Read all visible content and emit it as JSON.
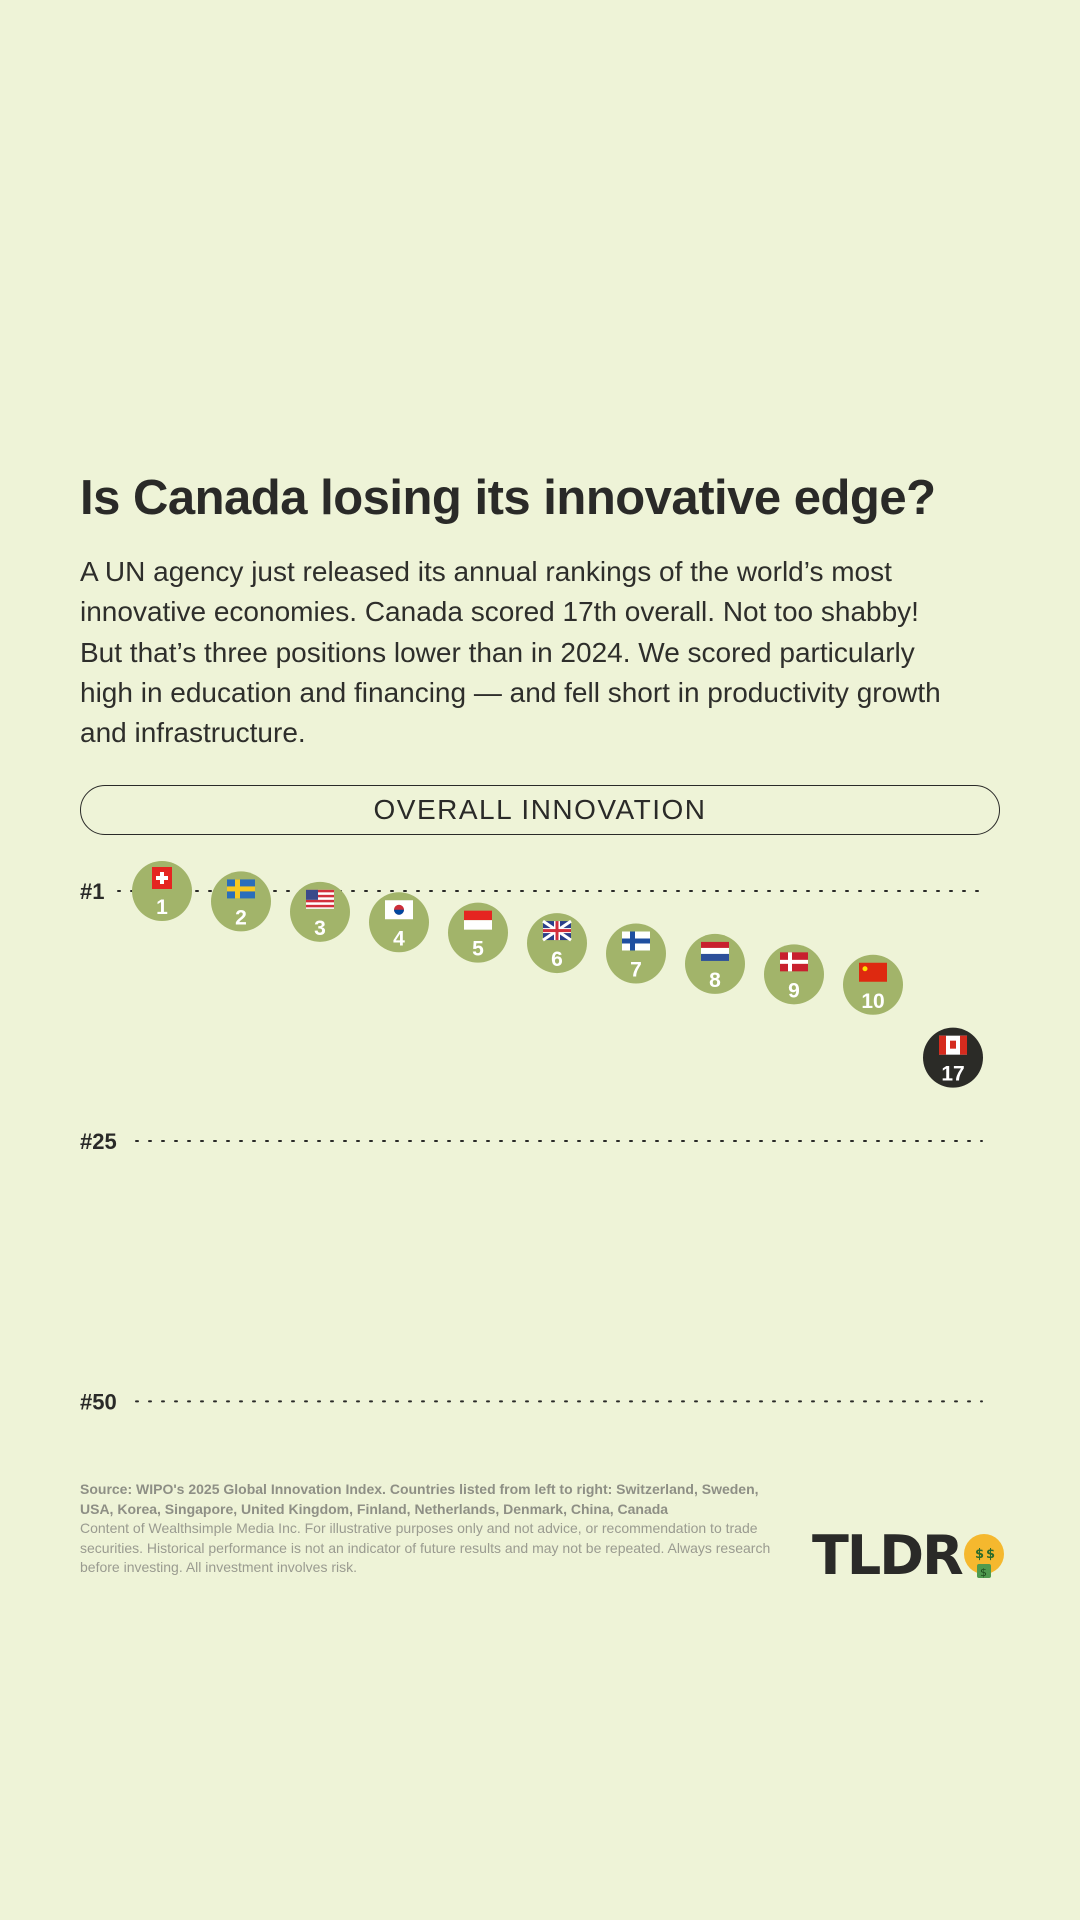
{
  "header": {
    "title": "Is Canada losing its innovative edge?",
    "intro": "A UN agency just released its annual rankings of the world’s most innovative economies. Canada scored 17th overall. Not too shabby! But that’s three positions lower than in 2024. We scored particularly high in education and financing — and fell short in productivity growth and infrastructure."
  },
  "chart_data": {
    "type": "scatter",
    "title": "OVERALL INNOVATION",
    "y_axis": {
      "ticks": [
        1,
        25,
        50
      ],
      "tick_labels": [
        "#1",
        "#25",
        "#50"
      ],
      "reversed": true,
      "range": [
        1,
        50
      ]
    },
    "grid": "dotted horizontal lines at ticks",
    "points": [
      {
        "country": "Switzerland",
        "flag": "flag-ch",
        "rank": 1,
        "label": "1",
        "highlight": false
      },
      {
        "country": "Sweden",
        "flag": "flag-se",
        "rank": 2,
        "label": "2",
        "highlight": false
      },
      {
        "country": "USA",
        "flag": "flag-us",
        "rank": 3,
        "label": "3",
        "highlight": false
      },
      {
        "country": "Korea",
        "flag": "flag-kr",
        "rank": 4,
        "label": "4",
        "highlight": false
      },
      {
        "country": "Singapore",
        "flag": "flag-sg",
        "rank": 5,
        "label": "5",
        "highlight": false
      },
      {
        "country": "United Kingdom",
        "flag": "flag-gb",
        "rank": 6,
        "label": "6",
        "highlight": false
      },
      {
        "country": "Finland",
        "flag": "flag-fi",
        "rank": 7,
        "label": "7",
        "highlight": false
      },
      {
        "country": "Netherlands",
        "flag": "flag-nl",
        "rank": 8,
        "label": "8",
        "highlight": false
      },
      {
        "country": "Denmark",
        "flag": "flag-dk",
        "rank": 9,
        "label": "9",
        "highlight": false
      },
      {
        "country": "China",
        "flag": "flag-cn",
        "rank": 10,
        "label": "10",
        "highlight": false
      },
      {
        "country": "Canada",
        "flag": "flag-ca",
        "rank": 17,
        "label": "17",
        "highlight": true
      }
    ],
    "colors": {
      "point": "#a2b46a",
      "highlight": "#2b2b27",
      "label": "#ffffff",
      "background": "#eef3d7"
    }
  },
  "footer": {
    "source": "Source: WIPO's 2025 Global Innovation Index. Countries listed from left to right: Switzerland, Sweden, USA, Korea, Singapore, United Kingdom, Finland, Netherlands, Denmark, China, Canada",
    "disclaimer": "Content of Wealthsimple Media Inc. For illustrative purposes only and not advice, or recommendation to trade securities. Historical performance is not an indicator of future results and may not be repeated. Always research before investing. All investment involves risk."
  },
  "brand": {
    "logo_text": "TLDR",
    "logo_icon": "money-mouth-face-icon"
  }
}
